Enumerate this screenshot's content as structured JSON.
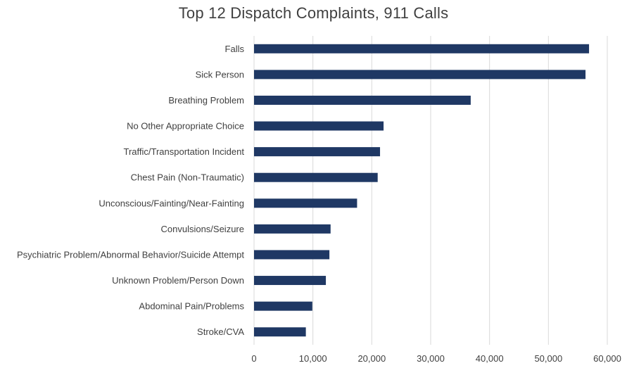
{
  "chart_data": {
    "type": "bar",
    "orientation": "horizontal",
    "title": "Top 12 Dispatch Complaints, 911 Calls",
    "xlabel": "",
    "ylabel": "",
    "categories": [
      "Falls",
      "Sick Person",
      "Breathing Problem",
      "No Other Appropriate Choice",
      "Traffic/Transportation Incident",
      "Chest Pain (Non-Traumatic)",
      "Unconscious/Fainting/Near-Fainting",
      "Convulsions/Seizure",
      "Psychiatric Problem/Abnormal Behavior/Suicide Attempt",
      "Unknown Problem/Person Down",
      "Abdominal Pain/Problems",
      "Stroke/CVA"
    ],
    "values": [
      56900,
      56300,
      36800,
      22000,
      21400,
      21000,
      17500,
      13000,
      12800,
      12200,
      9900,
      8800
    ],
    "xlim": [
      0,
      60000
    ],
    "xticks": [
      0,
      10000,
      20000,
      30000,
      40000,
      50000,
      60000
    ],
    "xtick_labels": [
      "0",
      "10,000",
      "20,000",
      "30,000",
      "40,000",
      "50,000",
      "60,000"
    ],
    "grid": true,
    "legend": "none",
    "colors": {
      "bar": "#1f3864",
      "grid": "#d9d9d9",
      "text": "#404040"
    }
  }
}
